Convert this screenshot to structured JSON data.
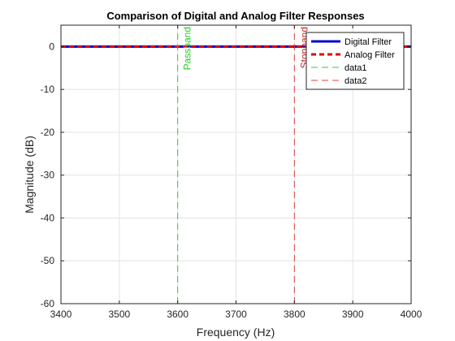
{
  "chart_data": {
    "type": "line",
    "title": "Comparison of Digital and Analog Filter Responses",
    "xlabel": "Frequency (Hz)",
    "ylabel": "Magnitude (dB)",
    "xlim": [
      3400,
      4000
    ],
    "ylim": [
      -60,
      5
    ],
    "xticks": [
      3400,
      3500,
      3600,
      3700,
      3800,
      3900,
      4000
    ],
    "yticks": [
      0,
      -10,
      -20,
      -30,
      -40,
      -50,
      -60
    ],
    "grid": true,
    "legend_position": "top-right",
    "series": [
      {
        "name": "Digital Filter",
        "color": "#0000cc",
        "style": "solid",
        "x": [
          3400,
          3500,
          3600,
          3700,
          3800,
          3900,
          4000
        ],
        "y": [
          0,
          0,
          0,
          0,
          0,
          0,
          0
        ]
      },
      {
        "name": "Analog Filter",
        "color": "#e00000",
        "style": "dashed",
        "x": [
          3400,
          3500,
          3600,
          3700,
          3800,
          3900,
          4000
        ],
        "y": [
          0,
          0,
          0,
          0,
          0,
          0,
          0
        ]
      },
      {
        "name": "data1",
        "color": "#33cc33",
        "style": "dashed",
        "x": [
          3600,
          3600
        ],
        "y": [
          -60,
          5
        ]
      },
      {
        "name": "data2",
        "color": "#e04040",
        "style": "dashed",
        "x": [
          3800,
          3800
        ],
        "y": [
          -60,
          5
        ]
      }
    ],
    "annotations": [
      {
        "text": "Passband",
        "x": 3600,
        "y": 5,
        "color": "#22cc22"
      },
      {
        "text": "Stopband",
        "x": 3800,
        "y": 5,
        "color": "#cc2222"
      }
    ]
  }
}
